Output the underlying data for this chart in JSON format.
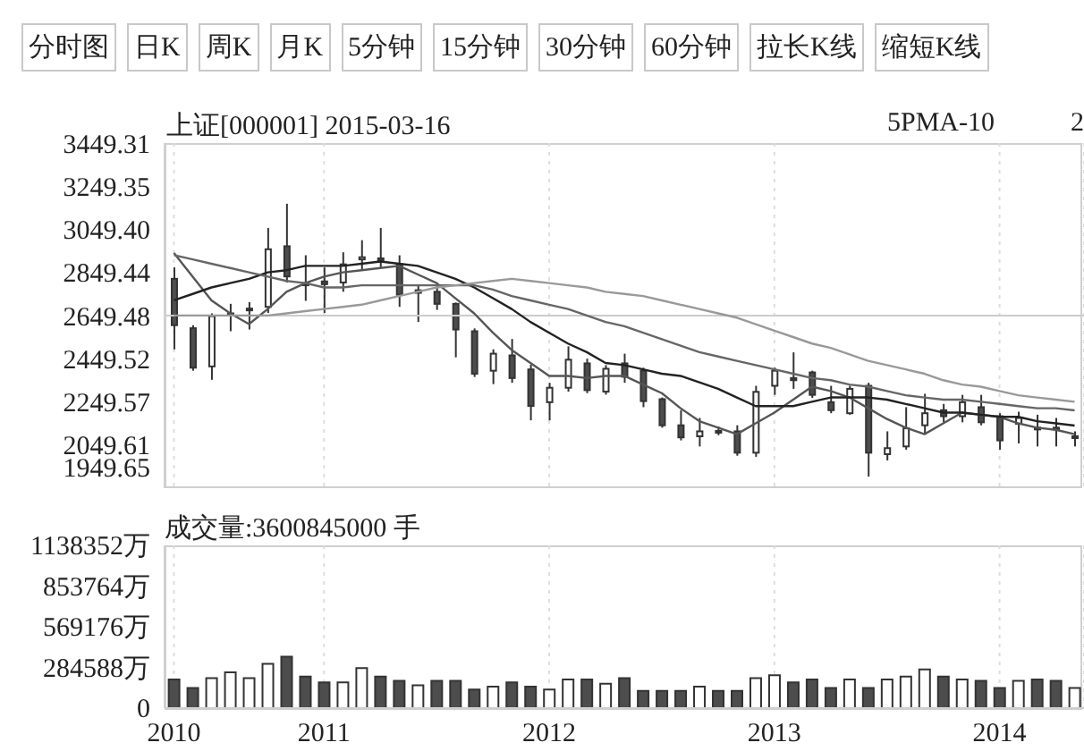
{
  "chart_data": [
    {
      "type": "other",
      "annotations": [
        "分时图",
        "日K",
        "周K",
        "月K",
        "5分钟",
        "15分钟",
        "30分钟",
        "60分钟",
        "拉长K线",
        "缩短K线"
      ]
    },
    {
      "type": "candlestick",
      "title": "上证[000001] 2015-03-16",
      "annotations": [
        "5PMA-10",
        "2"
      ],
      "categories": [
        "2010",
        null,
        null,
        null,
        null,
        null,
        null,
        null,
        "2011",
        null,
        null,
        null,
        null,
        null,
        null,
        null,
        null,
        null,
        null,
        null,
        "2012",
        null,
        null,
        null,
        null,
        null,
        null,
        null,
        null,
        null,
        null,
        null,
        "2013",
        null,
        null,
        null,
        null,
        null,
        null,
        null,
        null,
        null,
        null,
        null,
        "2014",
        null,
        null,
        null,
        null
      ],
      "ohlc": [
        [
          2820,
          2873,
          2493,
          2605
        ],
        [
          2591,
          2605,
          2394,
          2408
        ],
        [
          2414,
          2660,
          2352,
          2647
        ],
        [
          2655,
          2704,
          2577,
          2660
        ],
        [
          2675,
          2712,
          2585,
          2682
        ],
        [
          2690,
          3056,
          2662,
          2957
        ],
        [
          2971,
          3168,
          2803,
          2831
        ],
        [
          2800,
          2929,
          2718,
          2790
        ],
        [
          2808,
          2873,
          2662,
          2795
        ],
        [
          2803,
          2943,
          2760,
          2887
        ],
        [
          2910,
          2999,
          2858,
          2920
        ],
        [
          2915,
          3056,
          2873,
          2905
        ],
        [
          2887,
          2929,
          2690,
          2746
        ],
        [
          2755,
          2788,
          2620,
          2767
        ],
        [
          2760,
          2788,
          2676,
          2704
        ],
        [
          2704,
          2710,
          2456,
          2585
        ],
        [
          2577,
          2590,
          2365,
          2380
        ],
        [
          2394,
          2493,
          2332,
          2473
        ],
        [
          2465,
          2541,
          2338,
          2360
        ],
        [
          2400,
          2422,
          2164,
          2231
        ],
        [
          2248,
          2338,
          2164,
          2315
        ],
        [
          2315,
          2507,
          2297,
          2445
        ],
        [
          2428,
          2450,
          2290,
          2304
        ],
        [
          2297,
          2420,
          2283,
          2403
        ],
        [
          2428,
          2473,
          2338,
          2366
        ],
        [
          2394,
          2408,
          2225,
          2253
        ],
        [
          2262,
          2270,
          2130,
          2141
        ],
        [
          2141,
          2211,
          2071,
          2085
        ],
        [
          2090,
          2175,
          2043,
          2113
        ],
        [
          2115,
          2135,
          2095,
          2110
        ],
        [
          2113,
          2141,
          2000,
          2014
        ],
        [
          2014,
          2324,
          1995,
          2296
        ],
        [
          2324,
          2408,
          2282,
          2394
        ],
        [
          2360,
          2479,
          2310,
          2350
        ],
        [
          2386,
          2394,
          2268,
          2282
        ],
        [
          2248,
          2324,
          2197,
          2211
        ],
        [
          2197,
          2324,
          2190,
          2310
        ],
        [
          2324,
          2338,
          1903,
          2014
        ],
        [
          2007,
          2113,
          1978,
          2035
        ],
        [
          2043,
          2225,
          2028,
          2127
        ],
        [
          2141,
          2287,
          2099,
          2197
        ],
        [
          2211,
          2240,
          2155,
          2183
        ],
        [
          2183,
          2282,
          2155,
          2248
        ],
        [
          2225,
          2282,
          2141,
          2155
        ],
        [
          2183,
          2197,
          2028,
          2071
        ],
        [
          2148,
          2204,
          2057,
          2175
        ],
        [
          2130,
          2190,
          2043,
          2125
        ],
        [
          2130,
          2175,
          2043,
          2125
        ],
        [
          2085,
          2113,
          2043,
          2090
        ]
      ],
      "colors": [
        "#4d4d4d",
        "#4d4d4d",
        "#ffffff",
        "#ffffff",
        "#ffffff",
        "#ffffff",
        "#4d4d4d",
        "#4d4d4d",
        "#4d4d4d",
        "#ffffff",
        "#ffffff",
        "#4d4d4d",
        "#4d4d4d",
        "#ffffff",
        "#4d4d4d",
        "#4d4d4d",
        "#4d4d4d",
        "#ffffff",
        "#4d4d4d",
        "#4d4d4d",
        "#ffffff",
        "#ffffff",
        "#4d4d4d",
        "#ffffff",
        "#4d4d4d",
        "#4d4d4d",
        "#4d4d4d",
        "#4d4d4d",
        "#ffffff",
        "#4d4d4d",
        "#4d4d4d",
        "#ffffff",
        "#ffffff",
        "#4d4d4d",
        "#4d4d4d",
        "#4d4d4d",
        "#ffffff",
        "#4d4d4d",
        "#ffffff",
        "#ffffff",
        "#ffffff",
        "#4d4d4d",
        "#ffffff",
        "#4d4d4d",
        "#4d4d4d",
        "#ffffff",
        "#4d4d4d",
        "#4d4d4d",
        "#ffffff"
      ],
      "series": [
        {
          "type": "line",
          "color": "#555555",
          "values": [
            2940,
            2830,
            2720,
            2660,
            2610,
            2680,
            2760,
            2800,
            2830,
            2850,
            2860,
            2870,
            2880,
            2840,
            2800,
            2730,
            2660,
            2570,
            2490,
            2430,
            2370,
            2370,
            2360,
            2370,
            2370,
            2330,
            2290,
            2220,
            2160,
            2130,
            2100,
            2150,
            2200,
            2260,
            2320,
            2300,
            2270,
            2220,
            2170,
            2130,
            2100,
            2150,
            2200,
            2190,
            2180,
            2150,
            2130,
            2120,
            2100
          ]
        },
        {
          "type": "line",
          "color": "#222222",
          "values": [
            2720,
            2750,
            2780,
            2800,
            2820,
            2850,
            2860,
            2880,
            2880,
            2880,
            2890,
            2900,
            2890,
            2880,
            2850,
            2820,
            2780,
            2730,
            2680,
            2620,
            2570,
            2520,
            2480,
            2430,
            2420,
            2400,
            2380,
            2370,
            2340,
            2310,
            2270,
            2230,
            2230,
            2230,
            2250,
            2270,
            2270,
            2270,
            2260,
            2240,
            2220,
            2200,
            2200,
            2190,
            2180,
            2180,
            2160,
            2150,
            2140
          ]
        },
        {
          "type": "line",
          "color": "#666666",
          "values": [
            2930,
            2910,
            2890,
            2870,
            2850,
            2830,
            2810,
            2800,
            2780,
            2780,
            2790,
            2790,
            2790,
            2790,
            2790,
            2790,
            2790,
            2770,
            2740,
            2720,
            2700,
            2680,
            2650,
            2620,
            2600,
            2570,
            2540,
            2510,
            2480,
            2460,
            2440,
            2420,
            2400,
            2380,
            2360,
            2350,
            2330,
            2320,
            2300,
            2280,
            2270,
            2260,
            2260,
            2250,
            2240,
            2230,
            2220,
            2220,
            2210
          ]
        },
        {
          "type": "line",
          "color": "#999999",
          "values": [
            2650,
            2650,
            2650,
            2650,
            2650,
            2650,
            2660,
            2670,
            2680,
            2690,
            2700,
            2720,
            2740,
            2760,
            2780,
            2790,
            2800,
            2810,
            2820,
            2810,
            2800,
            2790,
            2780,
            2760,
            2750,
            2740,
            2720,
            2700,
            2680,
            2660,
            2640,
            2610,
            2580,
            2550,
            2520,
            2500,
            2470,
            2440,
            2420,
            2400,
            2380,
            2350,
            2330,
            2320,
            2300,
            2280,
            2270,
            2260,
            2250
          ]
        }
      ],
      "ylim": [
        1849.65,
        3449.31
      ],
      "yticks": [
        1949.65,
        2049.61,
        2249.57,
        2449.52,
        2649.48,
        2849.44,
        {
          "value": 3049.4,
          "label": "3049.40"
        },
        3249.35,
        3449.31
      ],
      "grid": "x",
      "marker": "none",
      "tick_labels": "y",
      "ref_lines": [
        {
          "axis": "y",
          "value": 2649.48,
          "color": "#cccccc"
        }
      ]
    },
    {
      "type": "bar",
      "title": "成交量:3600845000 手",
      "categories": [
        "2010",
        null,
        null,
        null,
        null,
        null,
        null,
        null,
        "2011",
        null,
        null,
        null,
        null,
        null,
        null,
        null,
        null,
        null,
        null,
        null,
        "2012",
        null,
        null,
        null,
        null,
        null,
        null,
        null,
        null,
        null,
        null,
        null,
        "2013",
        null,
        null,
        null,
        null,
        null,
        null,
        null,
        null,
        null,
        null,
        null,
        "2014",
        null,
        null,
        null,
        null
      ],
      "values": [
        200000,
        140000,
        210000,
        250000,
        210000,
        310000,
        360000,
        220000,
        180000,
        180000,
        280000,
        220000,
        190000,
        160000,
        190000,
        190000,
        130000,
        150000,
        180000,
        150000,
        130000,
        200000,
        200000,
        170000,
        210000,
        120000,
        120000,
        120000,
        150000,
        120000,
        120000,
        210000,
        230000,
        180000,
        200000,
        140000,
        200000,
        140000,
        200000,
        220000,
        270000,
        220000,
        200000,
        190000,
        140000,
        190000,
        200000,
        190000,
        140000
      ],
      "colors": [
        "#4d4d4d",
        "#4d4d4d",
        "#ffffff",
        "#ffffff",
        "#ffffff",
        "#ffffff",
        "#4d4d4d",
        "#4d4d4d",
        "#4d4d4d",
        "#ffffff",
        "#ffffff",
        "#4d4d4d",
        "#4d4d4d",
        "#ffffff",
        "#4d4d4d",
        "#4d4d4d",
        "#4d4d4d",
        "#ffffff",
        "#4d4d4d",
        "#4d4d4d",
        "#ffffff",
        "#ffffff",
        "#4d4d4d",
        "#ffffff",
        "#4d4d4d",
        "#4d4d4d",
        "#4d4d4d",
        "#4d4d4d",
        "#ffffff",
        "#4d4d4d",
        "#4d4d4d",
        "#ffffff",
        "#ffffff",
        "#4d4d4d",
        "#4d4d4d",
        "#4d4d4d",
        "#ffffff",
        "#4d4d4d",
        "#ffffff",
        "#ffffff",
        "#ffffff",
        "#4d4d4d",
        "#ffffff",
        "#4d4d4d",
        "#4d4d4d",
        "#ffffff",
        "#4d4d4d",
        "#4d4d4d",
        "#ffffff"
      ],
      "ylim": [
        0,
        1138352
      ],
      "yticks": [
        0,
        {
          "value": 284588,
          "label": "284588万"
        },
        {
          "value": 569176,
          "label": "569176万"
        },
        {
          "value": 853764,
          "label": "853764万"
        },
        {
          "value": 1138352,
          "label": "1138352万"
        }
      ],
      "grid": "x"
    }
  ]
}
